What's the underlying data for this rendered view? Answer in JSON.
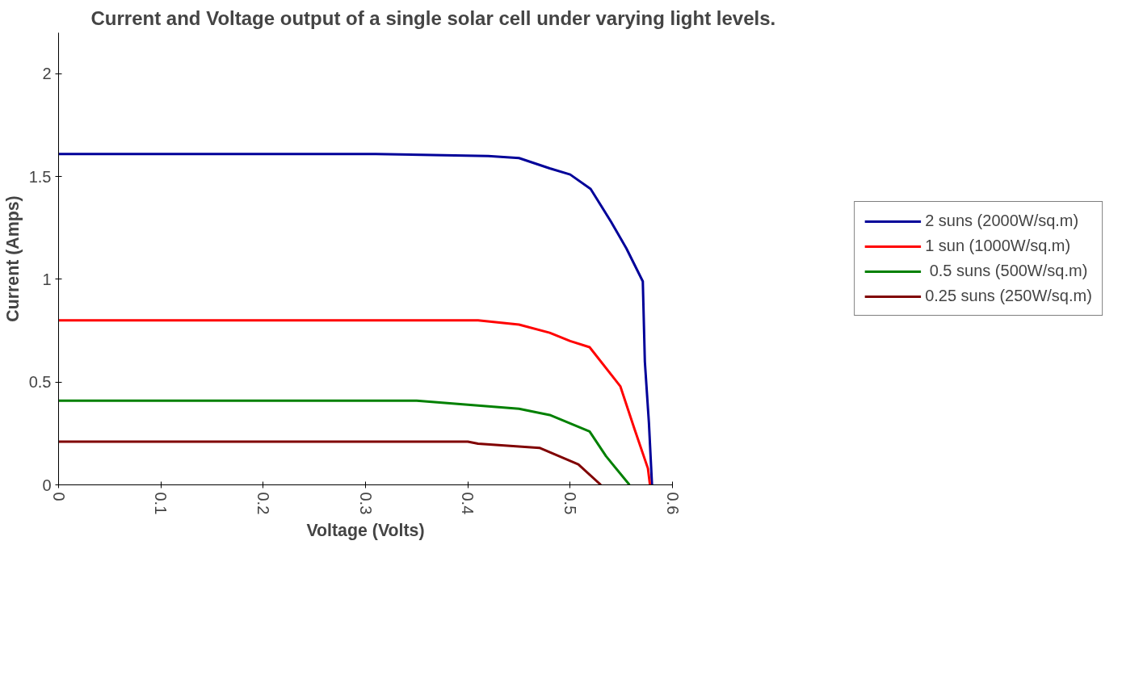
{
  "chart_data": {
    "type": "line",
    "title": "Current and Voltage output of a single solar cell under varying light levels.",
    "xlabel": "Voltage (Volts)",
    "ylabel": "Current (Amps)",
    "xlim": [
      0,
      0.6
    ],
    "xticks": [
      0,
      0.1,
      0.2,
      0.3,
      0.4,
      0.5,
      0.6
    ],
    "ylim": [
      0,
      2.2
    ],
    "yticks": [
      0,
      0.5,
      1,
      1.5,
      2
    ],
    "grid": false,
    "legend": "right",
    "marker": "none",
    "line_style": "solid",
    "series": [
      {
        "name": "2 suns (2000W/sq.m)",
        "color": "#000099",
        "x": [
          0,
          0.1,
          0.2,
          0.31,
          0.42,
          0.45,
          0.48,
          0.5,
          0.52,
          0.54,
          0.555,
          0.571,
          0.573,
          0.577,
          0.58
        ],
        "values": [
          1.61,
          1.61,
          1.61,
          1.61,
          1.6,
          1.59,
          1.54,
          1.51,
          1.44,
          1.28,
          1.15,
          0.99,
          0.6,
          0.3,
          0
        ]
      },
      {
        "name": "1 sun (1000W/sq.m)",
        "color": "#ff0000",
        "x": [
          0,
          0.1,
          0.2,
          0.3,
          0.41,
          0.45,
          0.48,
          0.5,
          0.519,
          0.549,
          0.563,
          0.576,
          0.578
        ],
        "values": [
          0.8,
          0.8,
          0.8,
          0.8,
          0.8,
          0.78,
          0.74,
          0.7,
          0.67,
          0.48,
          0.27,
          0.08,
          0
        ]
      },
      {
        "name": " 0.5 suns (500W/sq.m)",
        "color": "#008000",
        "x": [
          0,
          0.1,
          0.2,
          0.35,
          0.4,
          0.45,
          0.48,
          0.519,
          0.535,
          0.558
        ],
        "values": [
          0.41,
          0.41,
          0.41,
          0.41,
          0.39,
          0.37,
          0.34,
          0.26,
          0.14,
          0
        ]
      },
      {
        "name": "0.25 suns (250W/sq.m)",
        "color": "#800000",
        "x": [
          0,
          0.1,
          0.2,
          0.3,
          0.4,
          0.41,
          0.47,
          0.508,
          0.53
        ],
        "values": [
          0.21,
          0.21,
          0.21,
          0.21,
          0.21,
          0.2,
          0.18,
          0.1,
          0
        ]
      }
    ]
  }
}
